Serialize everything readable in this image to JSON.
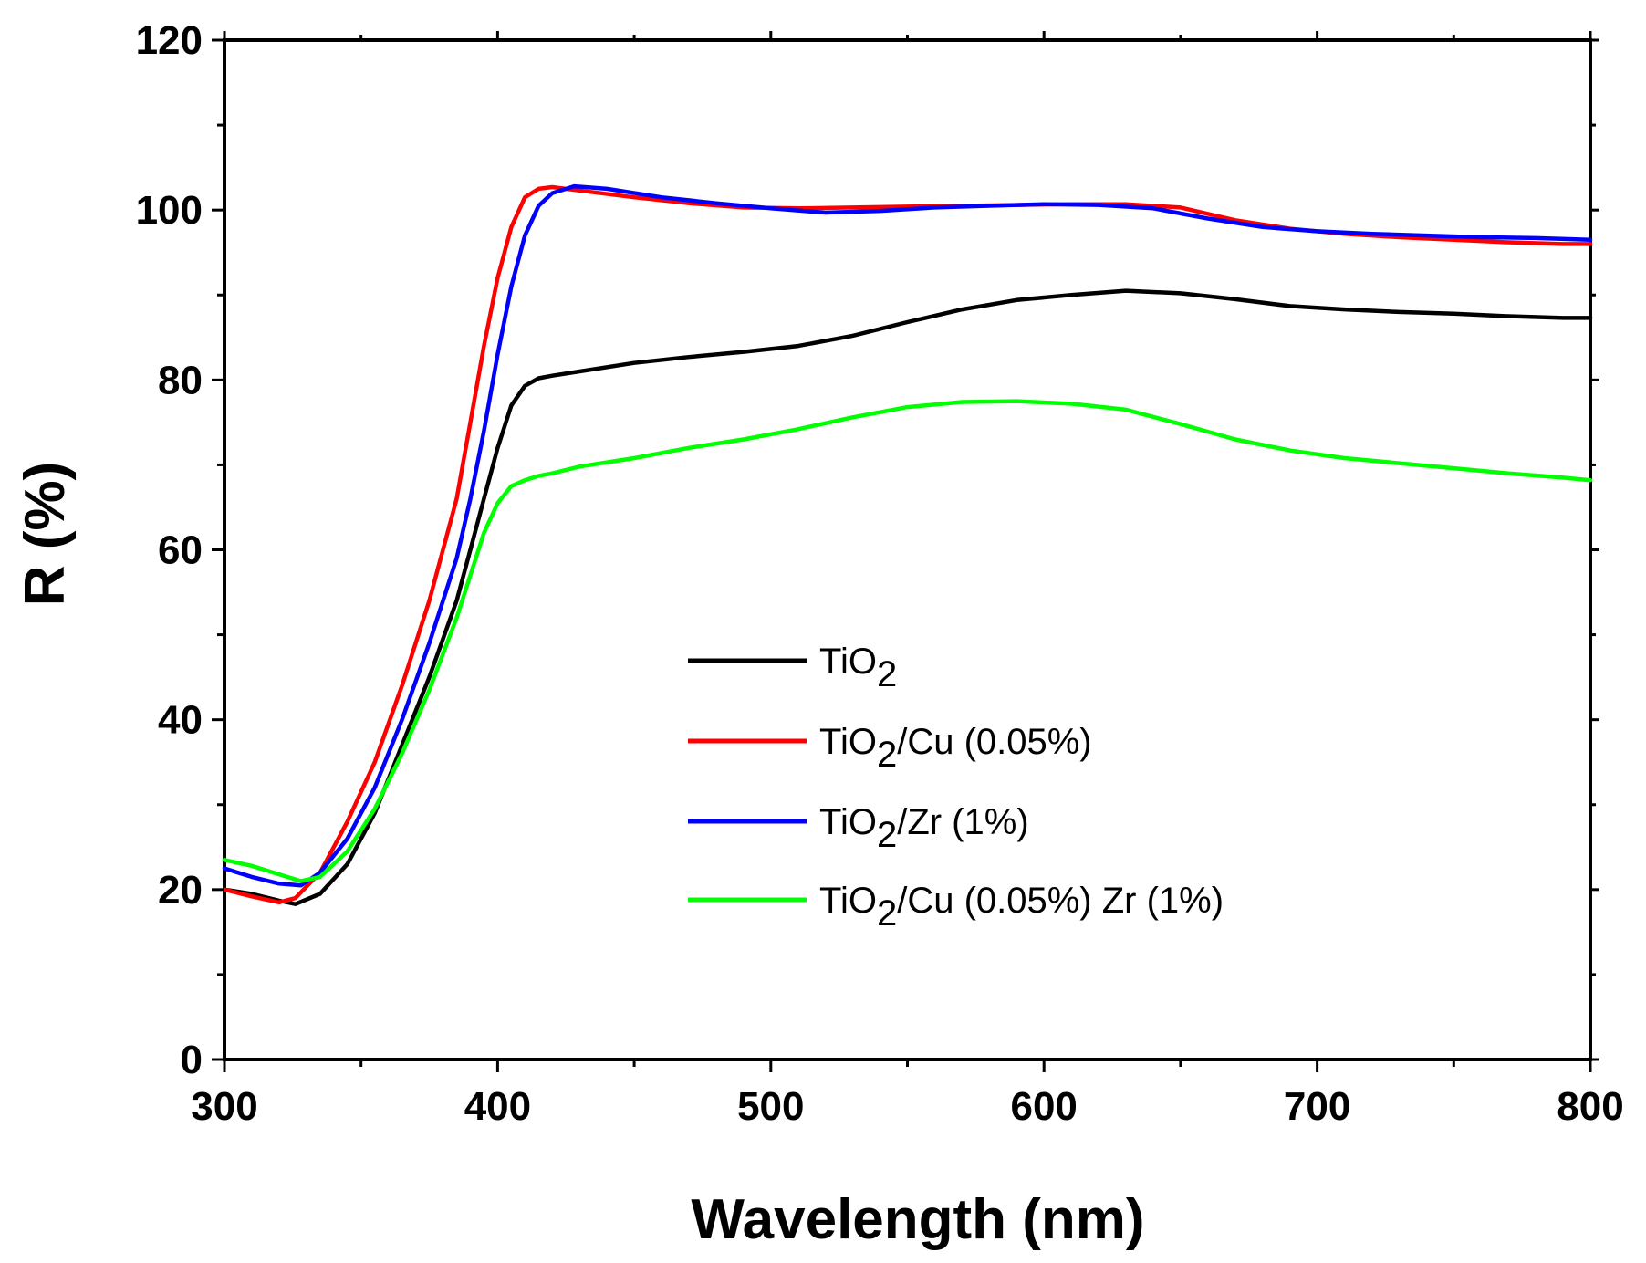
{
  "chart_data": {
    "type": "line",
    "title": "",
    "xlabel": "Wavelength (nm)",
    "ylabel": "R (%)",
    "xlim": [
      300,
      800
    ],
    "ylim": [
      0,
      120
    ],
    "xticks": [
      300,
      400,
      500,
      600,
      700,
      800
    ],
    "yticks": [
      0,
      20,
      40,
      60,
      80,
      100,
      120
    ],
    "xtick_labels": [
      "300",
      "400",
      "500",
      "600",
      "700",
      "800"
    ],
    "ytick_labels": [
      "0",
      "20",
      "40",
      "60",
      "80",
      "100",
      "120"
    ],
    "grid": false,
    "legend_position": "center-right",
    "series": [
      {
        "name": "TiO2",
        "label_main": "TiO",
        "label_sub": "2",
        "label_rest": "",
        "color": "#000000",
        "x": [
          300,
          310,
          320,
          326,
          335,
          345,
          355,
          365,
          375,
          385,
          390,
          395,
          400,
          405,
          410,
          415,
          420,
          430,
          450,
          470,
          490,
          510,
          530,
          550,
          570,
          590,
          610,
          630,
          650,
          670,
          690,
          710,
          730,
          750,
          770,
          790,
          800
        ],
        "y": [
          20,
          19.5,
          18.7,
          18.3,
          19.5,
          23,
          29,
          37,
          45,
          54,
          60,
          66,
          72,
          77,
          79.3,
          80.2,
          80.5,
          81,
          82,
          82.7,
          83.3,
          84,
          85.2,
          86.8,
          88.3,
          89.4,
          90,
          90.5,
          90.2,
          89.5,
          88.7,
          88.3,
          88,
          87.8,
          87.5,
          87.3,
          87.3
        ]
      },
      {
        "name": "TiO2/Cu (0.05%)",
        "label_main": "TiO",
        "label_sub": "2",
        "label_rest": "/Cu (0.05%)",
        "color": "#ff0000",
        "x": [
          300,
          310,
          320,
          326,
          335,
          345,
          355,
          365,
          375,
          385,
          390,
          395,
          400,
          405,
          410,
          415,
          420,
          430,
          450,
          470,
          490,
          510,
          530,
          550,
          570,
          590,
          610,
          630,
          650,
          670,
          690,
          710,
          730,
          750,
          770,
          790,
          800
        ],
        "y": [
          20,
          19.2,
          18.5,
          19,
          22,
          28,
          35,
          44,
          54,
          66,
          75,
          84,
          92,
          98,
          101.5,
          102.5,
          102.7,
          102.3,
          101.5,
          100.8,
          100.3,
          100.2,
          100.3,
          100.4,
          100.5,
          100.6,
          100.7,
          100.7,
          100.3,
          98.8,
          97.8,
          97.2,
          96.8,
          96.5,
          96.2,
          96,
          96
        ]
      },
      {
        "name": "TiO2/Zr (1%)",
        "label_main": "TiO",
        "label_sub": "2",
        "label_rest": "/Zr (1%)",
        "color": "#0000ff",
        "x": [
          300,
          310,
          320,
          328,
          335,
          345,
          355,
          365,
          375,
          385,
          390,
          395,
          400,
          405,
          410,
          415,
          420,
          428,
          440,
          460,
          480,
          500,
          520,
          540,
          560,
          580,
          600,
          620,
          640,
          660,
          680,
          700,
          720,
          740,
          760,
          780,
          800
        ],
        "y": [
          22.5,
          21.5,
          20.7,
          20.5,
          22,
          26,
          32,
          40,
          49,
          59,
          66,
          74,
          83,
          91,
          97,
          100.5,
          102,
          102.8,
          102.5,
          101.5,
          100.8,
          100.2,
          99.7,
          99.9,
          100.3,
          100.5,
          100.7,
          100.6,
          100.2,
          99,
          98,
          97.5,
          97.2,
          97,
          96.8,
          96.7,
          96.5
        ]
      },
      {
        "name": "TiO2/Cu (0.05%) Zr (1%)",
        "label_main": "TiO",
        "label_sub": "2",
        "label_rest": "/Cu (0.05%) Zr (1%)",
        "color": "#00ff00",
        "x": [
          300,
          310,
          320,
          328,
          335,
          345,
          355,
          365,
          375,
          385,
          390,
          395,
          400,
          405,
          410,
          415,
          420,
          430,
          450,
          470,
          490,
          510,
          530,
          550,
          570,
          590,
          610,
          630,
          650,
          670,
          690,
          710,
          730,
          750,
          770,
          790,
          800
        ],
        "y": [
          23.5,
          22.8,
          21.8,
          21,
          21.5,
          24.5,
          29.5,
          36,
          43.5,
          52,
          57,
          62,
          65.5,
          67.5,
          68.2,
          68.7,
          69,
          69.8,
          70.8,
          72,
          73,
          74.2,
          75.6,
          76.8,
          77.4,
          77.5,
          77.2,
          76.5,
          74.8,
          73,
          71.7,
          70.8,
          70.2,
          69.6,
          69,
          68.5,
          68.2
        ]
      }
    ]
  }
}
